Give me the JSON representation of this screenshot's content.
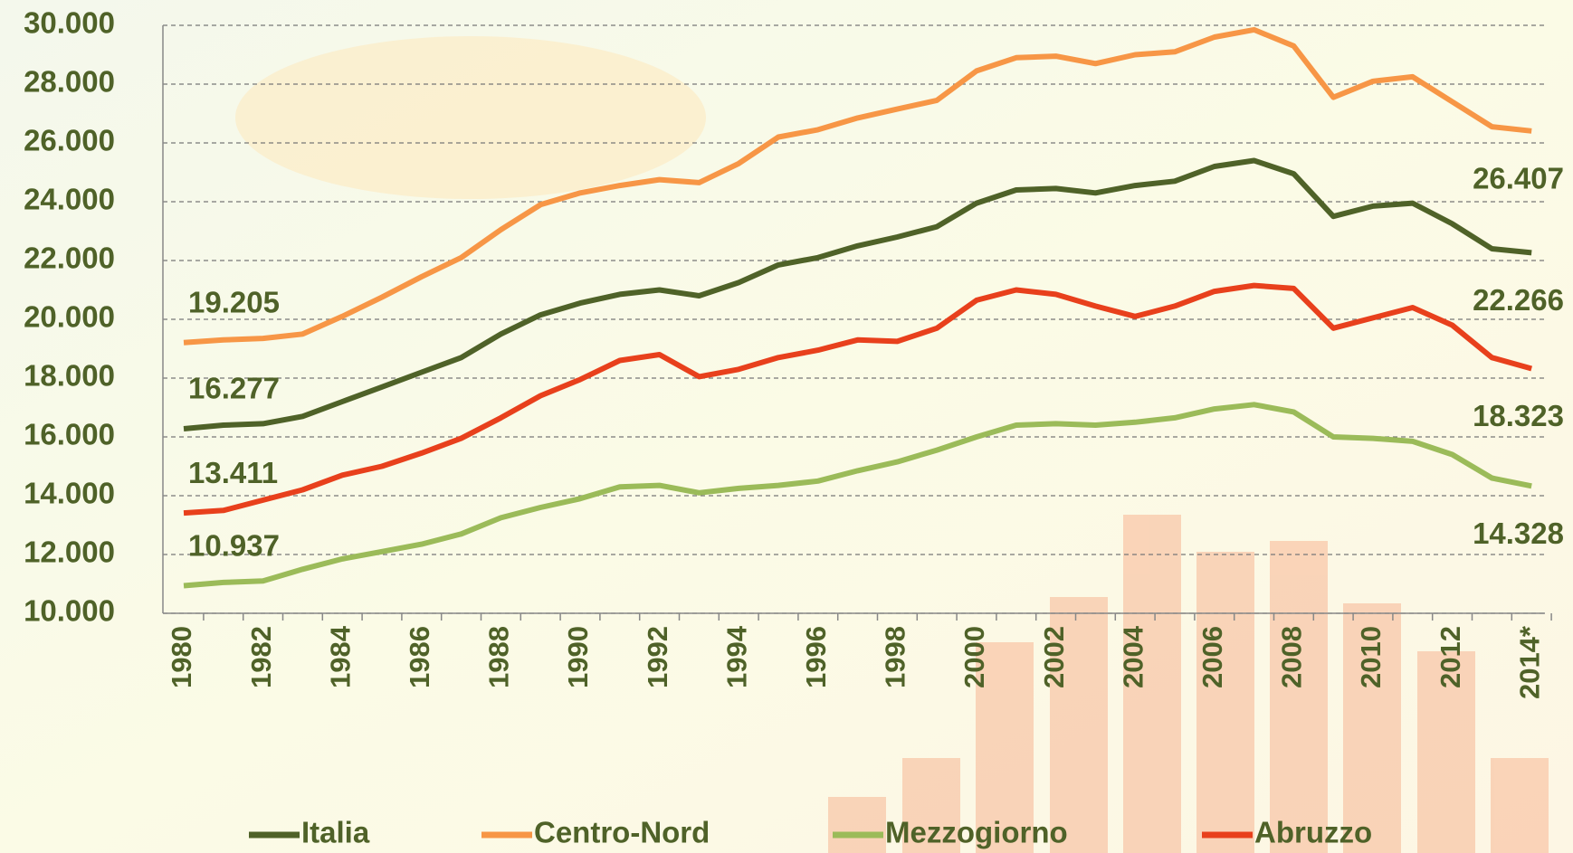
{
  "chart_data": {
    "type": "line",
    "categories": [
      "1980",
      null,
      "1982",
      null,
      "1984",
      null,
      "1986",
      null,
      "1988",
      null,
      "1990",
      null,
      "1992",
      null,
      "1994",
      null,
      "1996",
      null,
      "1998",
      null,
      "2000",
      null,
      "2002",
      null,
      "2004",
      null,
      "2006",
      null,
      "2008",
      null,
      "2010",
      null,
      "2012",
      null,
      "2014*"
    ],
    "series": [
      {
        "name": "Italia",
        "color": "#4f6228",
        "values": [
          16277,
          16400,
          16450,
          16700,
          17200,
          17700,
          18200,
          18700,
          19500,
          20150,
          20550,
          20850,
          21000,
          20800,
          21250,
          21850,
          22100,
          22500,
          22800,
          23150,
          23950,
          24400,
          24450,
          24300,
          24550,
          24700,
          25200,
          25400,
          24950,
          23500,
          23850,
          23950,
          23250,
          22400,
          22266
        ],
        "value_labels": [
          "16.277",
          null,
          null,
          null,
          null,
          null,
          null,
          null,
          null,
          null,
          null,
          null,
          null,
          null,
          null,
          null,
          null,
          null,
          null,
          null,
          null,
          null,
          null,
          null,
          null,
          null,
          null,
          null,
          null,
          null,
          null,
          null,
          null,
          null,
          "22.266"
        ]
      },
      {
        "name": "Centro-Nord",
        "color": "#f79646",
        "values": [
          19205,
          19300,
          19350,
          19500,
          20100,
          20750,
          21450,
          22100,
          23050,
          23900,
          24300,
          24550,
          24750,
          24650,
          25300,
          26200,
          26450,
          26850,
          27150,
          27450,
          28450,
          28900,
          28950,
          28700,
          29000,
          29100,
          29600,
          29850,
          29300,
          27550,
          28100,
          28250,
          27400,
          26550,
          26407
        ],
        "value_labels": [
          "19.205",
          null,
          null,
          null,
          null,
          null,
          null,
          null,
          null,
          null,
          null,
          null,
          null,
          null,
          null,
          null,
          null,
          null,
          null,
          null,
          null,
          null,
          null,
          null,
          null,
          null,
          null,
          null,
          null,
          null,
          null,
          null,
          null,
          null,
          "26.407"
        ]
      },
      {
        "name": "Mezzogiorno",
        "color": "#9bbb59",
        "values": [
          10937,
          11050,
          11100,
          11500,
          11850,
          12100,
          12350,
          12700,
          13250,
          13600,
          13900,
          14300,
          14350,
          14100,
          14250,
          14350,
          14500,
          14850,
          15150,
          15550,
          16000,
          16400,
          16450,
          16400,
          16500,
          16650,
          16950,
          17100,
          16850,
          16000,
          15950,
          15850,
          15400,
          14600,
          14328
        ],
        "value_labels": [
          "10.937",
          null,
          null,
          null,
          null,
          null,
          null,
          null,
          null,
          null,
          null,
          null,
          null,
          null,
          null,
          null,
          null,
          null,
          null,
          null,
          null,
          null,
          null,
          null,
          null,
          null,
          null,
          null,
          null,
          null,
          null,
          null,
          null,
          null,
          "14.328"
        ]
      },
      {
        "name": "Abruzzo",
        "color": "#e8401c",
        "values": [
          13411,
          13500,
          13850,
          14200,
          14700,
          15000,
          15450,
          15950,
          16650,
          17400,
          17950,
          18600,
          18800,
          18050,
          18300,
          18700,
          18950,
          19300,
          19250,
          19700,
          20650,
          21000,
          20850,
          20450,
          20100,
          20450,
          20950,
          21150,
          21050,
          19700,
          20050,
          20400,
          19800,
          18700,
          18323
        ],
        "value_labels": [
          "13.411",
          null,
          null,
          null,
          null,
          null,
          null,
          null,
          null,
          null,
          null,
          null,
          null,
          null,
          null,
          null,
          null,
          null,
          null,
          null,
          null,
          null,
          null,
          null,
          null,
          null,
          null,
          null,
          null,
          null,
          null,
          null,
          null,
          null,
          "18.323"
        ]
      }
    ],
    "ylim": [
      10000,
      30000
    ],
    "yticks": [
      {
        "value": 10000,
        "label": "10.000"
      },
      {
        "value": 12000,
        "label": "12.000"
      },
      {
        "value": 14000,
        "label": "14.000"
      },
      {
        "value": 16000,
        "label": "16.000"
      },
      {
        "value": 18000,
        "label": "18.000"
      },
      {
        "value": 20000,
        "label": "20.000"
      },
      {
        "value": 22000,
        "label": "22.000"
      },
      {
        "value": 24000,
        "label": "24.000"
      },
      {
        "value": 26000,
        "label": "26.000"
      },
      {
        "value": 28000,
        "label": "28.000"
      },
      {
        "value": 30000,
        "label": "30.000"
      }
    ],
    "grid": true
  }
}
